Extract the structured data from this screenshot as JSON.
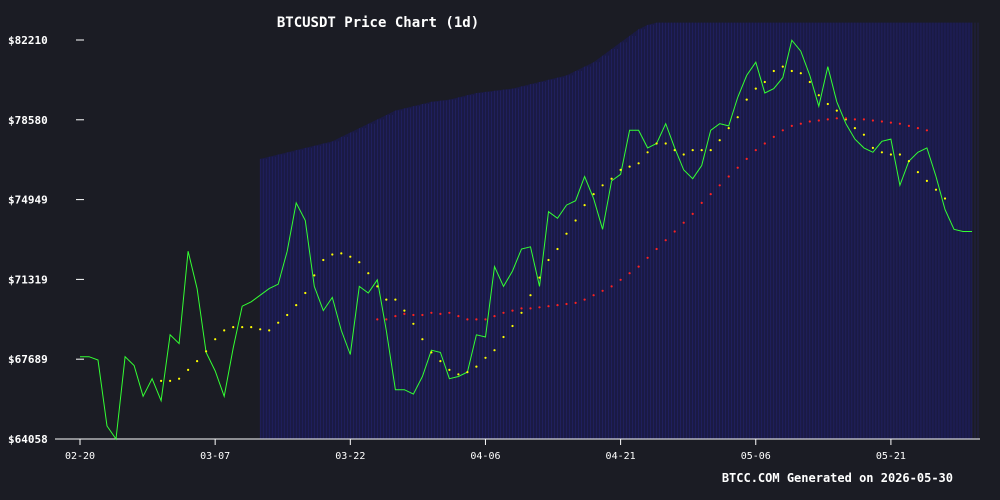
{
  "chart_data": {
    "type": "line",
    "title": "BTCUSDT Price Chart (1d)",
    "footer": "BTCC.COM Generated on 2026-05-30",
    "xlabel": "",
    "ylabel": "",
    "ylim": [
      64058,
      82210
    ],
    "y_ticks": [
      "$82210",
      "$78580",
      "$74949",
      "$71319",
      "$67689",
      "$64058"
    ],
    "y_tick_values": [
      82210,
      78580,
      74949,
      71319,
      67689,
      64058
    ],
    "x_ticks": [
      "02-20",
      "03-07",
      "03-22",
      "04-06",
      "04-21",
      "05-06",
      "05-21"
    ],
    "x_tick_index": [
      0,
      15,
      30,
      45,
      60,
      75,
      90
    ],
    "grid": false,
    "colors": {
      "price": "#33ff33",
      "sma_short": "#ffff00",
      "sma_long": "#ff2222",
      "band": "#1a1a5e",
      "background": "#1b1c24"
    },
    "series": [
      {
        "key": "price",
        "values": [
          67800,
          67800,
          67650,
          64650,
          64058,
          67800,
          67400,
          66000,
          66800,
          65800,
          68800,
          68400,
          72600,
          70900,
          68000,
          67150,
          66000,
          68200,
          70100,
          70300,
          70600,
          70900,
          71100,
          72600,
          74800,
          74000,
          71000,
          69900,
          70500,
          69000,
          67900,
          71000,
          70700,
          71300,
          69000,
          66300,
          66300,
          66100,
          66900,
          68100,
          68000,
          66800,
          66900,
          67100,
          68800,
          68700,
          71900,
          71000,
          71700,
          72700,
          72800,
          71000,
          74400,
          74100,
          74700,
          74900,
          76000,
          75000,
          73600,
          75800,
          76100,
          78100,
          78100,
          77300,
          77500,
          78400,
          77300,
          76300,
          75900,
          76500,
          78100,
          78400,
          78300,
          79600,
          80600,
          81200,
          79800,
          80000,
          80500,
          82200,
          81700,
          80600,
          79200,
          81000,
          79400,
          78400,
          77700,
          77300,
          77100,
          77600,
          77700,
          75600,
          76700,
          77100,
          77300,
          76000,
          74500,
          73600,
          73500,
          73500
        ],
        "x_start": 0
      },
      {
        "key": "sma_short",
        "values": [
          66700,
          66700,
          66800,
          67200,
          67600,
          68050,
          68600,
          69000,
          69150,
          69150,
          69150,
          69050,
          69000,
          69350,
          69700,
          70150,
          70700,
          71500,
          72200,
          72450,
          72500,
          72350,
          72100,
          71600,
          71000,
          70400,
          70400,
          69900,
          69300,
          68600,
          68000,
          67600,
          67200,
          67000,
          67100,
          67350,
          67750,
          68100,
          68700,
          69200,
          69800,
          70600,
          71400,
          72200,
          72700,
          73400,
          74000,
          74700,
          75200,
          75600,
          75900,
          76300,
          76450,
          76600,
          77100,
          77500,
          77500,
          77200,
          77000,
          77200,
          77200,
          77200,
          77650,
          78200,
          78700,
          79500,
          80000,
          80300,
          80800,
          81000,
          80800,
          80700,
          80300,
          79700,
          79300,
          79000,
          78600,
          78200,
          77900,
          77300,
          77100,
          77000,
          77000,
          76700,
          76200,
          75800,
          75400,
          75000
        ],
        "x_start": 9
      },
      {
        "key": "sma_long",
        "values": [
          69500,
          69500,
          69650,
          69750,
          69700,
          69700,
          69800,
          69750,
          69800,
          69650,
          69500,
          69500,
          69500,
          69650,
          69800,
          69900,
          70000,
          70000,
          70050,
          70100,
          70150,
          70200,
          70250,
          70400,
          70600,
          70800,
          71000,
          71300,
          71600,
          71900,
          72300,
          72700,
          73100,
          73500,
          73900,
          74300,
          74800,
          75200,
          75600,
          76000,
          76400,
          76800,
          77200,
          77500,
          77800,
          78100,
          78300,
          78400,
          78500,
          78550,
          78600,
          78650,
          78650,
          78600,
          78600,
          78550,
          78500,
          78450,
          78400,
          78300,
          78200,
          78100
        ],
        "x_start": 33
      }
    ],
    "band_start": 20,
    "band_end": 99,
    "band": {
      "upper": [
        76800,
        76900,
        77000,
        77100,
        77200,
        77300,
        77400,
        77500,
        77600,
        77800,
        78000,
        78200,
        78400,
        78600,
        78800,
        79000,
        79100,
        79200,
        79300,
        79400,
        79450,
        79500,
        79600,
        79700,
        79800,
        79850,
        79900,
        79950,
        80000,
        80100,
        80200,
        80300,
        80400,
        80500,
        80600,
        80800,
        81000,
        81200,
        81500,
        81800,
        82100,
        82400,
        82700,
        82900,
        83000,
        83000,
        83000,
        83000,
        83000,
        83000,
        83000,
        83000,
        83000,
        83000,
        83000,
        83000,
        83000,
        83000,
        83000,
        83000,
        83000,
        83000,
        83000,
        83000,
        83000,
        83000,
        83000,
        83000,
        83000,
        83000,
        83000,
        83000,
        83000,
        83000,
        83000,
        83000,
        83000,
        83000,
        83000,
        83000
      ],
      "lower": [
        64058,
        64058,
        64058,
        64058,
        64058,
        64058,
        64058,
        64058,
        64058,
        64058,
        64058,
        64058,
        64058,
        64058,
        64058,
        64058,
        64058,
        64058,
        64058,
        64058,
        64058,
        64058,
        64058,
        64058,
        64058,
        64058,
        64058,
        64058,
        64058,
        64058,
        64058,
        64058,
        64058,
        64058,
        64058,
        64058,
        64058,
        64058,
        64058,
        64058,
        64058,
        64058,
        64058,
        64058,
        64058,
        64058,
        64058,
        64058,
        64058,
        64058,
        64058,
        64058,
        64058,
        64058,
        64058,
        64058,
        64058,
        64058,
        64058,
        64058,
        64058,
        64058,
        64058,
        64058,
        64058,
        64058,
        64058,
        64058,
        64058,
        64058,
        64058,
        64058,
        64058,
        64058,
        64058,
        64058,
        64058,
        64058,
        64058,
        64058
      ]
    },
    "x_count": 100
  }
}
